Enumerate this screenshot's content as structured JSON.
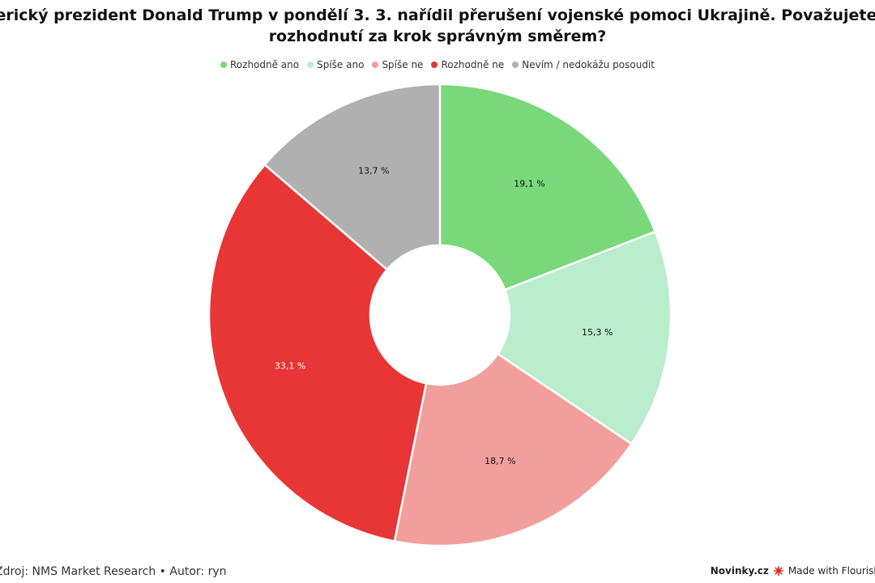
{
  "chart_data": {
    "type": "pie",
    "title": "Americký prezident Donald Trump v pondělí 3. 3. nařídil přerušení vojenské pomoci Ukrajině. Považujete toto rozhodnutí za krok správným směrem?",
    "title_lines": [
      "Americký prezident Donald Trump v pondělí 3. 3. nařídil přerušení vojenské pomoci Ukrajině. Považujete toto",
      "rozhodnutí za krok správným směrem?"
    ],
    "categories": [
      "Rozhodně ano",
      "Spíše ano",
      "Spíše ne",
      "Rozhodně ne",
      "Nevím / nedokážu posoudit"
    ],
    "values": [
      19.1,
      15.3,
      18.7,
      33.1,
      13.7
    ],
    "labels": [
      "19,1 %",
      "15,3 %",
      "18,7 %",
      "33,1 %",
      "13,7 %"
    ],
    "colors": [
      "#79d87a",
      "#b9edcc",
      "#f29e9d",
      "#e83535",
      "#b0b0b0"
    ],
    "label_colors": [
      "#111111",
      "#111111",
      "#111111",
      "#ffffff",
      "#111111"
    ],
    "legend_position": "top-center",
    "donut": true
  },
  "footer": {
    "source": "Zdroj: NMS Market Research • Autor: ryn",
    "brand": "Novinky.cz",
    "made_with": "Made with Flourish"
  }
}
